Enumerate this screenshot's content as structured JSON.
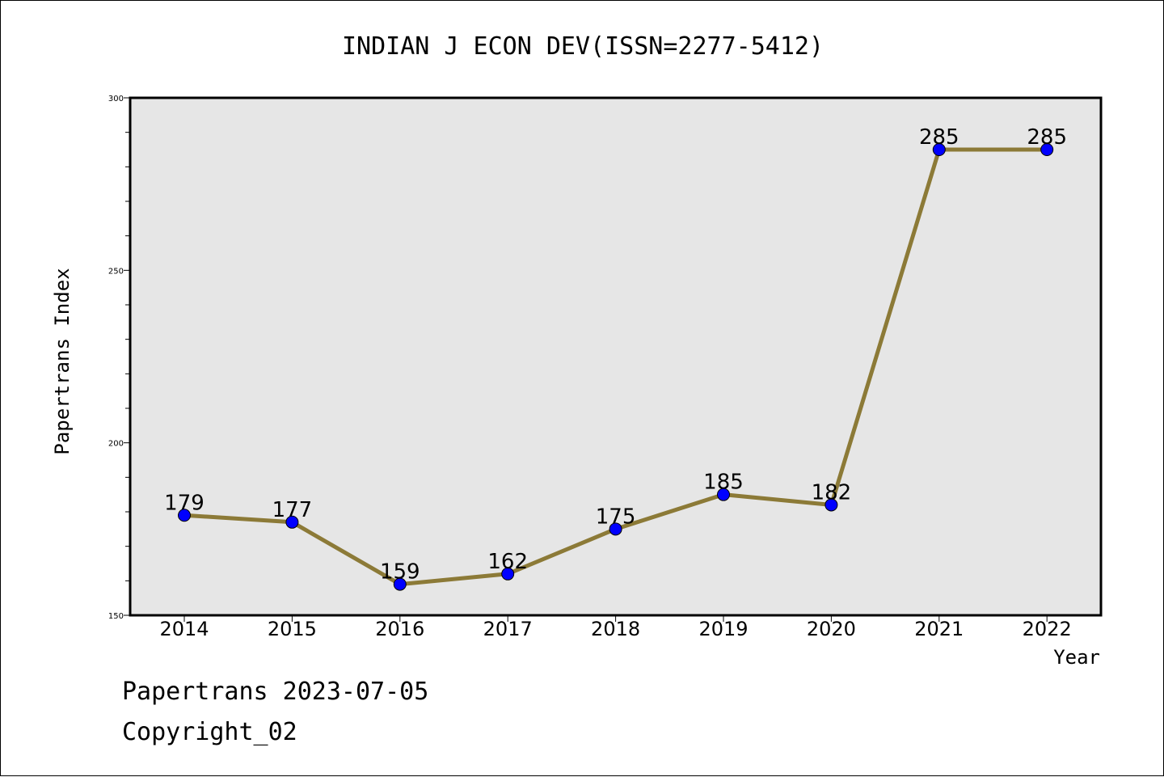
{
  "chart_data": {
    "type": "line",
    "title": "INDIAN J ECON DEV(ISSN=2277-5412)",
    "xlabel": "Year",
    "ylabel": "Papertrans Index",
    "categories": [
      "2014",
      "2015",
      "2016",
      "2017",
      "2018",
      "2019",
      "2020",
      "2021",
      "2022"
    ],
    "series": [
      {
        "values": [
          179,
          177,
          159,
          162,
          175,
          185,
          182,
          285,
          285
        ]
      }
    ],
    "ylim": [
      150,
      300
    ],
    "y_ticks": [
      "150",
      "200",
      "250",
      "300"
    ],
    "grid": false,
    "line_color": "#8c7a37",
    "marker_color": "#0000ff",
    "plot_background": "#e6e6e6"
  },
  "footer": {
    "date_line": "Papertrans 2023-07-05",
    "copyright_line": "Copyright_02"
  }
}
